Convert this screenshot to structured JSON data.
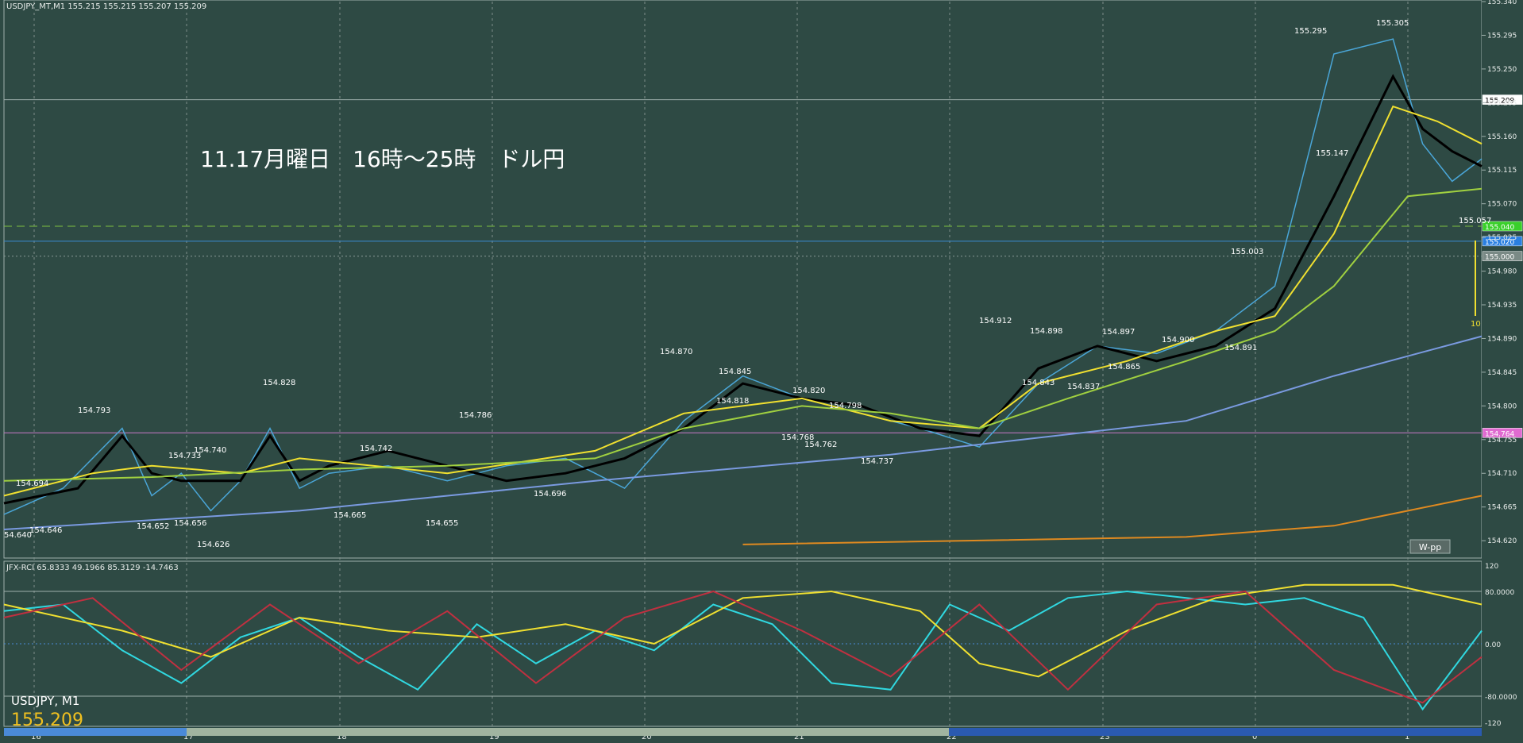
{
  "header": {
    "symbol_line": "USDJPY_MT,M1  155.215 155.215 155.207 155.209",
    "annotation": "11.17月曜日　16時～25時　ドル円",
    "wpp_label": "W-pp",
    "corner_symbol": "USDJPY, M1",
    "corner_price": "155.209",
    "vline_label": "10"
  },
  "rci_panel": {
    "label": "JFX-RCI 65.8333 49.1966 85.3129 -14.7463",
    "scale_labels": [
      "120",
      "80.0000",
      "0.00",
      "-80.0000",
      "-120"
    ]
  },
  "chart_data": [
    {
      "type": "line",
      "title": "USDJPY_MT,M1",
      "price_axis": {
        "ylim": [
          154.6,
          155.34
        ],
        "ticks": [
          155.34,
          155.295,
          155.25,
          155.205,
          155.16,
          155.115,
          155.07,
          155.025,
          154.98,
          154.935,
          154.89,
          154.845,
          154.8,
          154.755,
          154.71,
          154.665,
          154.62
        ],
        "tick_labels": [
          "155.340",
          "155.295",
          "155.250",
          "155.205",
          "155.160",
          "155.115",
          "155.070",
          "155.025",
          "154.980",
          "154.935",
          "154.890",
          "154.845",
          "154.800",
          "154.755",
          "154.710",
          "154.665",
          "154.620"
        ],
        "marked_levels": [
          {
            "value": 155.209,
            "label": "155.209",
            "color": "#ffffff",
            "line": "solid",
            "line_color": "#9fb0ac"
          },
          {
            "value": 155.04,
            "label": "155.040",
            "color": "#39d02a",
            "line": "dashed",
            "line_color": "#7fc040"
          },
          {
            "value": 155.02,
            "label": "155.020",
            "color": "#2a7fe0",
            "line": "solid",
            "line_color": "#3a8ad0"
          },
          {
            "value": 155.0,
            "label": "155.000",
            "color": "#7a8a86",
            "line": "dotted",
            "line_color": "#8a9a96"
          },
          {
            "value": 154.764,
            "label": "154.764",
            "color": "#e06ad0",
            "line": "solid",
            "line_color": "#c878c8"
          }
        ]
      },
      "time_axis": {
        "x": [
          "16",
          "17",
          "18",
          "19",
          "20",
          "21",
          "22",
          "23",
          "0",
          "1"
        ],
        "grid": true
      },
      "price_labels": [
        "155.295",
        "155.305",
        "155.147",
        "155.057",
        "155.003",
        "154.912",
        "154.898",
        "154.897",
        "154.900",
        "154.891",
        "154.865",
        "154.843",
        "154.837",
        "154.870",
        "154.845",
        "154.818",
        "154.820",
        "154.798",
        "154.768",
        "154.762",
        "154.737",
        "154.786",
        "154.742",
        "154.696",
        "154.655",
        "154.665",
        "154.828",
        "154.793",
        "154.694",
        "154.733",
        "154.740",
        "154.652",
        "154.656",
        "154.626",
        "154.646",
        "54.640"
      ],
      "series": [
        {
          "name": "price",
          "color": "#4aa6d8",
          "x": [
            0,
            4,
            8,
            10,
            12,
            14,
            16,
            18,
            20,
            22,
            26,
            30,
            34,
            38,
            42,
            46,
            50,
            54,
            58,
            62,
            66,
            70,
            74,
            78,
            82,
            86,
            90,
            94,
            96,
            98,
            100
          ],
          "values": [
            154.655,
            154.69,
            154.77,
            154.68,
            154.71,
            154.66,
            154.7,
            154.77,
            154.69,
            154.71,
            154.72,
            154.7,
            154.72,
            154.73,
            154.69,
            154.78,
            154.84,
            154.81,
            154.79,
            154.77,
            154.745,
            154.83,
            154.88,
            154.87,
            154.9,
            154.96,
            155.27,
            155.29,
            155.15,
            155.1,
            155.13
          ]
        },
        {
          "name": "sma-black",
          "color": "#000000",
          "x": [
            0,
            5,
            8,
            10,
            12,
            14,
            16,
            18,
            20,
            22,
            26,
            30,
            34,
            38,
            42,
            46,
            50,
            54,
            58,
            62,
            66,
            70,
            74,
            78,
            82,
            86,
            90,
            94,
            96,
            98,
            100
          ],
          "values": [
            154.67,
            154.69,
            154.76,
            154.71,
            154.7,
            154.7,
            154.7,
            154.76,
            154.7,
            154.72,
            154.74,
            154.72,
            154.7,
            154.71,
            154.73,
            154.77,
            154.83,
            154.81,
            154.8,
            154.77,
            154.76,
            154.85,
            154.88,
            154.86,
            154.88,
            154.93,
            155.08,
            155.24,
            155.17,
            155.14,
            155.12
          ]
        },
        {
          "name": "ema-yellow",
          "color": "#f0e030",
          "x": [
            0,
            6,
            10,
            16,
            20,
            30,
            40,
            46,
            54,
            60,
            66,
            70,
            76,
            82,
            86,
            90,
            94,
            97,
            100
          ],
          "values": [
            154.68,
            154.71,
            154.72,
            154.71,
            154.73,
            154.71,
            154.74,
            154.79,
            154.81,
            154.78,
            154.77,
            154.83,
            154.86,
            154.9,
            154.92,
            155.03,
            155.2,
            155.18,
            155.15
          ]
        },
        {
          "name": "ema-green",
          "color": "#a0d040",
          "x": [
            0,
            10,
            20,
            30,
            40,
            46,
            54,
            60,
            66,
            72,
            80,
            86,
            90,
            95,
            100
          ],
          "values": [
            154.7,
            154.705,
            154.715,
            154.72,
            154.73,
            154.77,
            154.8,
            154.79,
            154.77,
            154.81,
            154.86,
            154.9,
            154.96,
            155.08,
            155.09
          ]
        },
        {
          "name": "ma-blue",
          "color": "#7a9ae0",
          "x": [
            0,
            20,
            40,
            60,
            80,
            90,
            100
          ],
          "values": [
            154.635,
            154.66,
            154.7,
            154.735,
            154.78,
            154.84,
            154.893
          ]
        },
        {
          "name": "ma-orange",
          "color": "#e08a20",
          "x": [
            50,
            80,
            90,
            100
          ],
          "values": [
            154.615,
            154.625,
            154.64,
            154.68
          ]
        }
      ]
    },
    {
      "type": "line",
      "title": "JFX-RCI",
      "ylim": [
        -120,
        120
      ],
      "levels": [
        80,
        0,
        -80
      ],
      "series": [
        {
          "name": "rci-cyan",
          "color": "#30d8e0",
          "x": [
            0,
            4,
            8,
            12,
            16,
            20,
            24,
            28,
            32,
            36,
            40,
            44,
            48,
            52,
            56,
            60,
            64,
            68,
            72,
            76,
            80,
            84,
            88,
            92,
            96,
            100
          ],
          "values": [
            50,
            60,
            -10,
            -60,
            10,
            40,
            -20,
            -70,
            30,
            -30,
            20,
            -10,
            60,
            30,
            -60,
            -70,
            60,
            20,
            70,
            80,
            70,
            60,
            70,
            40,
            -100,
            20
          ]
        },
        {
          "name": "rci-yellow",
          "color": "#f0e030",
          "x": [
            0,
            8,
            14,
            20,
            26,
            32,
            38,
            44,
            50,
            56,
            62,
            66,
            70,
            76,
            82,
            88,
            94,
            100
          ],
          "values": [
            60,
            20,
            -20,
            40,
            20,
            10,
            30,
            0,
            70,
            80,
            50,
            -30,
            -50,
            20,
            70,
            90,
            90,
            60
          ]
        },
        {
          "name": "rci-red",
          "color": "#c03040",
          "x": [
            0,
            6,
            12,
            18,
            24,
            30,
            36,
            42,
            48,
            54,
            60,
            66,
            72,
            78,
            84,
            90,
            96,
            100
          ],
          "values": [
            40,
            70,
            -40,
            60,
            -30,
            50,
            -60,
            40,
            80,
            20,
            -50,
            60,
            -70,
            60,
            80,
            -40,
            -90,
            -20
          ]
        }
      ]
    }
  ]
}
